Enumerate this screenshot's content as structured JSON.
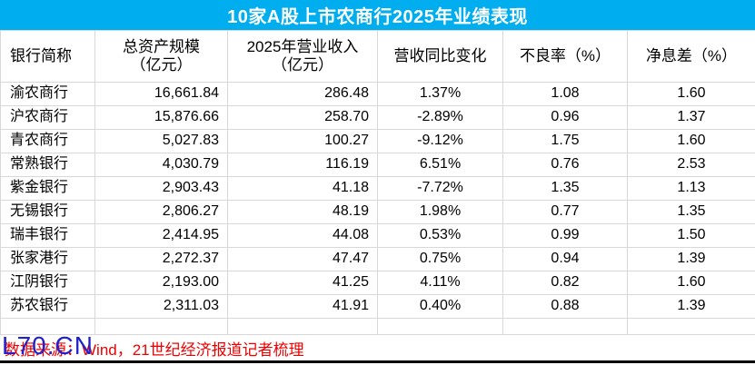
{
  "title": "10家A股上市农商行2025年业绩表现",
  "colors": {
    "title_bg": "#00AEEF",
    "title_text": "#FFFFFF",
    "grid_line": "#D8D8D8",
    "body_text": "#000000",
    "source_text": "#EE0000",
    "watermark_text": "#2222CC",
    "bottom_rule": "#000000"
  },
  "header": {
    "col1": "银行简称",
    "col2_line1": "总资产规模",
    "col2_line2": "（亿元）",
    "col3_line1": "2025年营业收入",
    "col3_line2": "（亿元）",
    "col4": "营收同比变化",
    "col5": "不良率（%）",
    "col6": "净息差（%）"
  },
  "footer": {
    "source_note": "数据来源：Wind，21世纪经济报道记者梳理",
    "watermark": "L70.CN"
  },
  "chart_data": {
    "type": "table",
    "title": "10家A股上市农商行2025年业绩表现",
    "columns": [
      "银行简称",
      "总资产规模（亿元）",
      "2025年营业收入（亿元）",
      "营收同比变化",
      "不良率（%）",
      "净息差（%）"
    ],
    "rows": [
      [
        "渝农商行",
        "16,661.84",
        "286.48",
        "1.37%",
        "1.08",
        "1.60"
      ],
      [
        "沪农商行",
        "15,876.66",
        "258.70",
        "-2.89%",
        "0.96",
        "1.37"
      ],
      [
        "青农商行",
        "5,027.83",
        "100.27",
        "-9.12%",
        "1.75",
        "1.60"
      ],
      [
        "常熟银行",
        "4,030.79",
        "116.19",
        "6.51%",
        "0.76",
        "2.53"
      ],
      [
        "紫金银行",
        "2,903.43",
        "41.18",
        "-7.72%",
        "1.35",
        "1.13"
      ],
      [
        "无锡银行",
        "2,806.27",
        "48.19",
        "1.98%",
        "0.77",
        "1.35"
      ],
      [
        "瑞丰银行",
        "2,414.95",
        "44.08",
        "0.53%",
        "0.99",
        "1.50"
      ],
      [
        "张家港行",
        "2,272.37",
        "47.47",
        "0.75%",
        "0.94",
        "1.39"
      ],
      [
        "江阴银行",
        "2,193.00",
        "41.25",
        "4.11%",
        "0.82",
        "1.60"
      ],
      [
        "苏农银行",
        "2,311.03",
        "41.91",
        "0.40%",
        "0.88",
        "1.39"
      ]
    ],
    "column_alignments": [
      "left",
      "right",
      "right",
      "center",
      "center",
      "center"
    ],
    "source_note": "数据来源：Wind，21世纪经济报道记者梳理",
    "watermark": "L70.CN"
  }
}
